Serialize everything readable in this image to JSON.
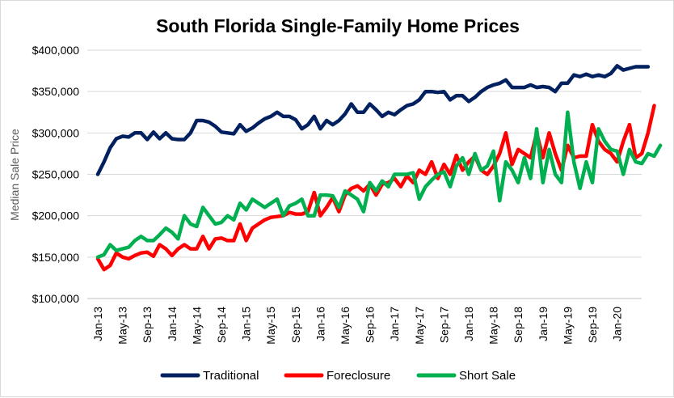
{
  "chart_data": {
    "type": "line",
    "title": "South Florida Single-Family Home Prices",
    "xlabel": "",
    "ylabel": "Median Sale Price",
    "ylim": [
      100000,
      400000
    ],
    "yticks": [
      100000,
      150000,
      200000,
      250000,
      300000,
      350000,
      400000
    ],
    "ytick_labels": [
      "$100,000",
      "$150,000",
      "$200,000",
      "$250,000",
      "$300,000",
      "$350,000",
      "$400,000"
    ],
    "x_start": "Jan-13",
    "x_tick_labels": [
      "Jan-13",
      "May-13",
      "Sep-13",
      "Jan-14",
      "May-14",
      "Sep-14",
      "Jan-15",
      "May-15",
      "Sep-15",
      "Jan-16",
      "May-16",
      "Sep-16",
      "Jan-17",
      "May-17",
      "Sep-17",
      "Jan-18",
      "May-18",
      "Sep-18",
      "Jan-19",
      "May-19",
      "Sep-19",
      "Jan-20"
    ],
    "x_tick_every_months": 4,
    "grid": true,
    "legend_position": "bottom",
    "series": [
      {
        "name": "Traditional",
        "color": "#002060",
        "values": [
          250000,
          265000,
          282000,
          293000,
          296000,
          295000,
          300000,
          300000,
          292000,
          301000,
          293000,
          300000,
          293000,
          292000,
          292000,
          300000,
          315000,
          315000,
          313000,
          308000,
          301000,
          300000,
          299000,
          310000,
          302000,
          306000,
          312000,
          317000,
          320000,
          325000,
          320000,
          320000,
          316000,
          305000,
          310000,
          320000,
          305000,
          315000,
          310000,
          315000,
          323000,
          335000,
          325000,
          325000,
          335000,
          328000,
          320000,
          325000,
          322000,
          328000,
          333000,
          335000,
          340000,
          350000,
          350000,
          349000,
          350000,
          340000,
          345000,
          345000,
          338000,
          343000,
          350000,
          355000,
          358000,
          360000,
          364000,
          355000,
          355000,
          355000,
          358000,
          355000,
          356000,
          355000,
          350000,
          360000,
          360000,
          370000,
          368000,
          371000,
          368000,
          370000,
          368000,
          372000,
          381000,
          376000,
          378000,
          380000,
          380000,
          380000
        ]
      },
      {
        "name": "Foreclosure",
        "color": "#ff0000",
        "values": [
          148000,
          135000,
          140000,
          155000,
          150000,
          148000,
          152000,
          155000,
          156000,
          151000,
          165000,
          160000,
          152000,
          160000,
          165000,
          160000,
          160000,
          175000,
          160000,
          172000,
          173000,
          170000,
          170000,
          190000,
          170000,
          185000,
          190000,
          195000,
          198000,
          199000,
          200000,
          204000,
          202000,
          202000,
          205000,
          228000,
          200000,
          210000,
          222000,
          205000,
          225000,
          233000,
          236000,
          230000,
          238000,
          225000,
          238000,
          240000,
          245000,
          235000,
          248000,
          240000,
          255000,
          250000,
          265000,
          245000,
          262000,
          250000,
          273000,
          255000,
          265000,
          272000,
          255000,
          250000,
          260000,
          275000,
          300000,
          262000,
          280000,
          275000,
          270000,
          300000,
          270000,
          300000,
          275000,
          255000,
          285000,
          270000,
          272000,
          272000,
          310000,
          290000,
          280000,
          275000,
          265000,
          290000,
          310000,
          270000,
          275000,
          300000,
          333000
        ]
      },
      {
        "name": "Short Sale",
        "color": "#00b050",
        "values": [
          150000,
          153000,
          165000,
          158000,
          160000,
          162000,
          170000,
          175000,
          170000,
          170000,
          177000,
          185000,
          180000,
          172000,
          200000,
          190000,
          187000,
          210000,
          200000,
          190000,
          192000,
          200000,
          195000,
          215000,
          207000,
          220000,
          215000,
          210000,
          215000,
          220000,
          200000,
          212000,
          215000,
          220000,
          200000,
          200000,
          225000,
          225000,
          224000,
          210000,
          230000,
          225000,
          220000,
          205000,
          240000,
          230000,
          242000,
          235000,
          250000,
          250000,
          250000,
          252000,
          220000,
          235000,
          243000,
          250000,
          253000,
          235000,
          260000,
          270000,
          250000,
          275000,
          255000,
          260000,
          278000,
          218000,
          265000,
          255000,
          240000,
          270000,
          245000,
          305000,
          240000,
          280000,
          250000,
          240000,
          325000,
          265000,
          233000,
          265000,
          240000,
          305000,
          290000,
          280000,
          278000,
          250000,
          280000,
          265000,
          263000,
          275000,
          272000,
          285000
        ]
      }
    ]
  }
}
